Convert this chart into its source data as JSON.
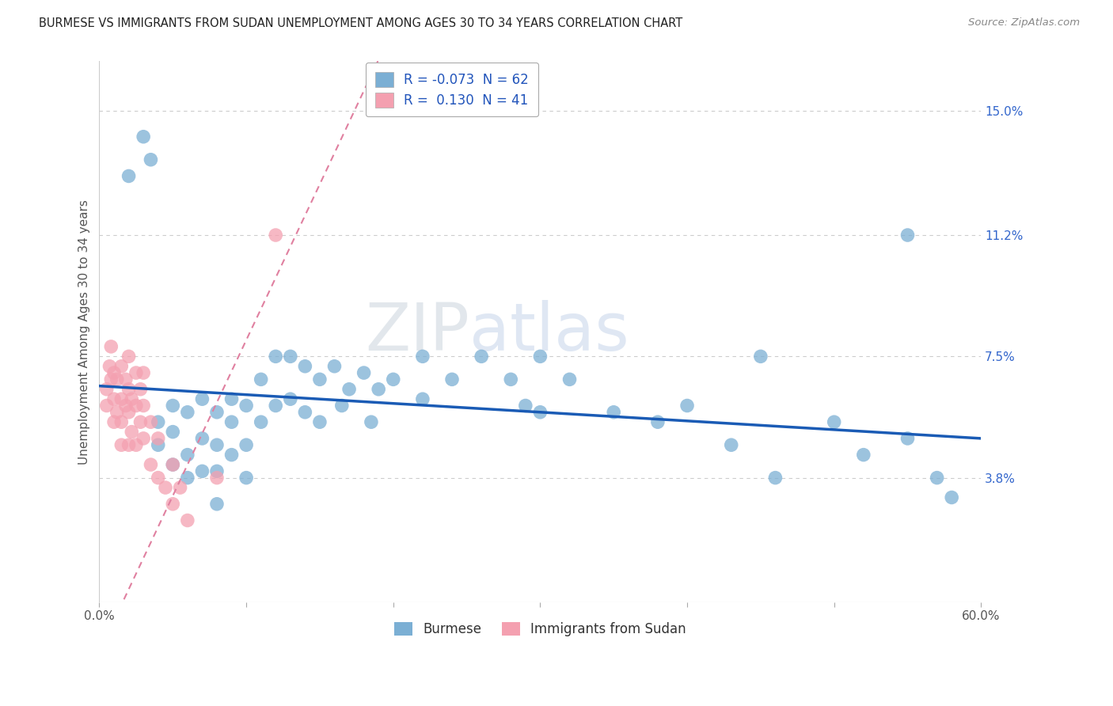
{
  "title": "BURMESE VS IMMIGRANTS FROM SUDAN UNEMPLOYMENT AMONG AGES 30 TO 34 YEARS CORRELATION CHART",
  "source": "Source: ZipAtlas.com",
  "ylabel": "Unemployment Among Ages 30 to 34 years",
  "xlim": [
    0.0,
    0.6
  ],
  "ylim": [
    0.0,
    0.165
  ],
  "xtick_positions": [
    0.0,
    0.1,
    0.2,
    0.3,
    0.4,
    0.5,
    0.6
  ],
  "xticklabels": [
    "0.0%",
    "",
    "",
    "",
    "",
    "",
    "60.0%"
  ],
  "ytick_values": [
    0.038,
    0.075,
    0.112,
    0.15
  ],
  "ytick_labels": [
    "3.8%",
    "7.5%",
    "11.2%",
    "15.0%"
  ],
  "blue_series_label": "Burmese",
  "pink_series_label": "Immigrants from Sudan",
  "blue_color": "#7bafd4",
  "pink_color": "#f4a0b0",
  "blue_trend_color": "#1a5bb5",
  "pink_trend_color": "#e080a0",
  "watermark": "ZIPatlas",
  "blue_R": -0.073,
  "blue_N": 62,
  "pink_R": 0.13,
  "pink_N": 41,
  "blue_scatter_x": [
    0.02,
    0.03,
    0.035,
    0.04,
    0.04,
    0.05,
    0.05,
    0.05,
    0.06,
    0.06,
    0.06,
    0.07,
    0.07,
    0.07,
    0.08,
    0.08,
    0.08,
    0.08,
    0.09,
    0.09,
    0.09,
    0.1,
    0.1,
    0.1,
    0.11,
    0.11,
    0.12,
    0.12,
    0.13,
    0.13,
    0.14,
    0.14,
    0.15,
    0.15,
    0.16,
    0.165,
    0.17,
    0.18,
    0.185,
    0.19,
    0.2,
    0.22,
    0.22,
    0.24,
    0.26,
    0.28,
    0.3,
    0.3,
    0.32,
    0.35,
    0.38,
    0.4,
    0.43,
    0.46,
    0.5,
    0.52,
    0.55,
    0.57,
    0.58,
    0.55,
    0.45,
    0.29
  ],
  "blue_scatter_y": [
    0.13,
    0.142,
    0.135,
    0.055,
    0.048,
    0.06,
    0.052,
    0.042,
    0.058,
    0.045,
    0.038,
    0.062,
    0.05,
    0.04,
    0.058,
    0.048,
    0.04,
    0.03,
    0.062,
    0.055,
    0.045,
    0.06,
    0.048,
    0.038,
    0.068,
    0.055,
    0.075,
    0.06,
    0.075,
    0.062,
    0.072,
    0.058,
    0.068,
    0.055,
    0.072,
    0.06,
    0.065,
    0.07,
    0.055,
    0.065,
    0.068,
    0.075,
    0.062,
    0.068,
    0.075,
    0.068,
    0.075,
    0.058,
    0.068,
    0.058,
    0.055,
    0.06,
    0.048,
    0.038,
    0.055,
    0.045,
    0.05,
    0.038,
    0.032,
    0.112,
    0.075,
    0.06
  ],
  "pink_scatter_x": [
    0.005,
    0.005,
    0.007,
    0.008,
    0.008,
    0.01,
    0.01,
    0.01,
    0.012,
    0.012,
    0.015,
    0.015,
    0.015,
    0.015,
    0.018,
    0.018,
    0.02,
    0.02,
    0.02,
    0.02,
    0.022,
    0.022,
    0.025,
    0.025,
    0.025,
    0.028,
    0.028,
    0.03,
    0.03,
    0.03,
    0.035,
    0.035,
    0.04,
    0.04,
    0.045,
    0.05,
    0.05,
    0.055,
    0.06,
    0.08,
    0.12
  ],
  "pink_scatter_y": [
    0.065,
    0.06,
    0.072,
    0.068,
    0.078,
    0.055,
    0.062,
    0.07,
    0.058,
    0.068,
    0.048,
    0.055,
    0.062,
    0.072,
    0.06,
    0.068,
    0.048,
    0.058,
    0.065,
    0.075,
    0.052,
    0.062,
    0.048,
    0.06,
    0.07,
    0.055,
    0.065,
    0.05,
    0.06,
    0.07,
    0.042,
    0.055,
    0.038,
    0.05,
    0.035,
    0.03,
    0.042,
    0.035,
    0.025,
    0.038,
    0.112
  ],
  "blue_trend_start_y": 0.066,
  "blue_trend_end_y": 0.05,
  "pink_trend_intercept": -0.015,
  "pink_trend_slope": 0.95
}
